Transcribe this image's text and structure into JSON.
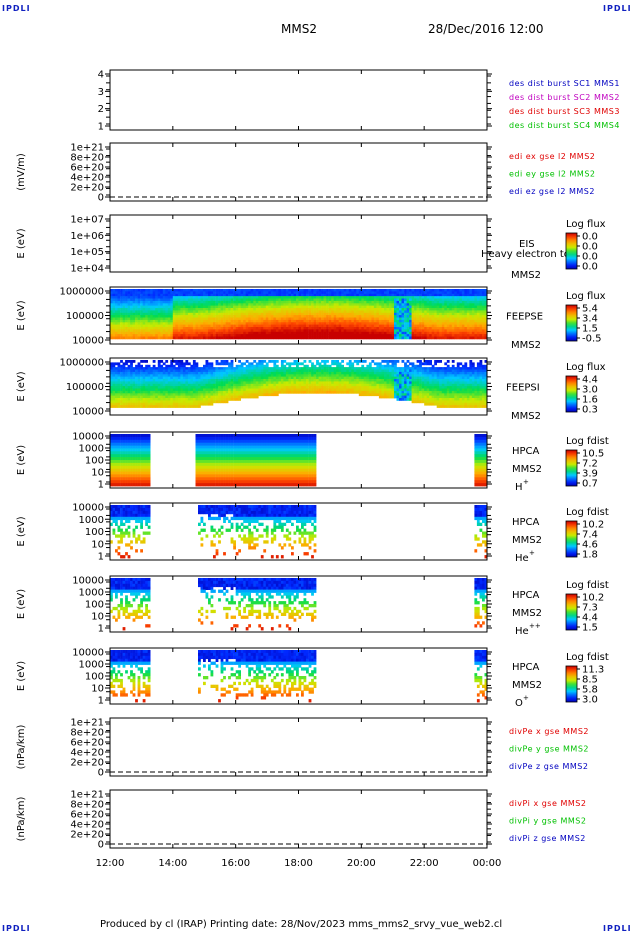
{
  "header": {
    "corner_label": "IPDLI",
    "spacecraft": "MMS2",
    "datetime": "28/Dec/2016 12:00"
  },
  "footer": {
    "text": "Produced by cl (IRAP)   Printing date: 28/Nov/2023   mms_mms2_srvy_vue_web2.cl"
  },
  "colors": {
    "red": "#e00000",
    "green": "#00c000",
    "blue": "#0000c0",
    "magenta": "#c000c0",
    "label_blue": "#1020c0"
  },
  "chart_data": {
    "type": "heatmap",
    "x_tick_labels": [
      "12:00",
      "14:00",
      "16:00",
      "18:00",
      "20:00",
      "22:00",
      "00:00"
    ],
    "x_range_hours": [
      12,
      24
    ],
    "panels": [
      {
        "id": "burst",
        "kind": "lines",
        "ylabel": "",
        "y_ticks": [
          "4",
          "3",
          "2",
          "1"
        ],
        "legend": [
          {
            "text": "des dist burst SC1 MMS1",
            "color": "#0000c0"
          },
          {
            "text": "des dist burst SC2 MMS2",
            "color": "#c000c0"
          },
          {
            "text": "des dist burst SC3 MMS3",
            "color": "#e00000"
          },
          {
            "text": "des dist burst SC4 MMS4",
            "color": "#00c000"
          }
        ]
      },
      {
        "id": "efield",
        "kind": "lines",
        "ylabel": "(mV/m)",
        "y_ticks": [
          "1e+21",
          "8e+20",
          "6e+20",
          "4e+20",
          "2e+20",
          "0"
        ],
        "zero_line": true,
        "legend": [
          {
            "text": "edi ex gse l2 MMS2",
            "color": "#e00000"
          },
          {
            "text": "edi ey gse l2 MMS2",
            "color": "#00c000"
          },
          {
            "text": "edi ez gse l2 MMS2",
            "color": "#0000c0"
          }
        ]
      },
      {
        "id": "eis",
        "kind": "spectrogram",
        "ylabel": "E (eV)",
        "y_ticks": [
          "1e+07",
          "1e+06",
          "1e+05",
          "1e+04"
        ],
        "instrument": "EIS",
        "overlay": "Heavy electron to",
        "sc": "MMS2",
        "colorbar": {
          "title": "Log flux",
          "ticks": [
            "0.0",
            "0.0",
            "0.0",
            "0.0"
          ]
        }
      },
      {
        "id": "feepse",
        "kind": "spectrogram",
        "ylabel": "E (eV)",
        "y_ticks": [
          "1000000",
          "100000",
          "10000"
        ],
        "instrument": "FEEPSE",
        "sc": "MMS2",
        "colorbar": {
          "title": "Log flux",
          "ticks": [
            "5.4",
            "3.4",
            "1.5",
            "-0.5"
          ]
        }
      },
      {
        "id": "feepsi",
        "kind": "spectrogram",
        "ylabel": "E (eV)",
        "y_ticks": [
          "1000000",
          "100000",
          "10000"
        ],
        "instrument": "FEEPSI",
        "sc": "MMS2",
        "colorbar": {
          "title": "Log flux",
          "ticks": [
            "4.4",
            "3.0",
            "1.6",
            "0.3"
          ]
        }
      },
      {
        "id": "hpca_h",
        "kind": "spectrogram",
        "ylabel": "E (eV)",
        "y_ticks": [
          "10000",
          "1000",
          "100",
          "10",
          "1"
        ],
        "instrument": "HPCA",
        "sc": "MMS2",
        "species": "H",
        "species_sup": "+",
        "colorbar": {
          "title": "Log fdist",
          "ticks": [
            "10.5",
            "7.2",
            "3.9",
            "0.7"
          ]
        }
      },
      {
        "id": "hpca_he",
        "kind": "spectrogram",
        "ylabel": "E (eV)",
        "y_ticks": [
          "10000",
          "1000",
          "100",
          "10",
          "1"
        ],
        "instrument": "HPCA",
        "sc": "MMS2",
        "species": "He",
        "species_sup": "+",
        "colorbar": {
          "title": "Log fdist",
          "ticks": [
            "10.2",
            "7.4",
            "4.6",
            "1.8"
          ]
        }
      },
      {
        "id": "hpca_he2",
        "kind": "spectrogram",
        "ylabel": "E (eV)",
        "y_ticks": [
          "10000",
          "1000",
          "100",
          "10",
          "1"
        ],
        "instrument": "HPCA",
        "sc": "MMS2",
        "species": "He",
        "species_sup": "++",
        "colorbar": {
          "title": "Log fdist",
          "ticks": [
            "10.2",
            "7.3",
            "4.4",
            "1.5"
          ]
        }
      },
      {
        "id": "hpca_o",
        "kind": "spectrogram",
        "ylabel": "E (eV)",
        "y_ticks": [
          "10000",
          "1000",
          "100",
          "10",
          "1"
        ],
        "instrument": "HPCA",
        "sc": "MMS2",
        "species": "O",
        "species_sup": "+",
        "colorbar": {
          "title": "Log fdist",
          "ticks": [
            "11.3",
            "8.5",
            "5.8",
            "3.0"
          ]
        }
      },
      {
        "id": "divpe",
        "kind": "lines",
        "ylabel": "(nPa/km)",
        "y_ticks": [
          "1e+21",
          "8e+20",
          "6e+20",
          "4e+20",
          "2e+20",
          "0"
        ],
        "zero_line": true,
        "legend": [
          {
            "text": "divPe x gse MMS2",
            "color": "#e00000"
          },
          {
            "text": "divPe y gse MMS2",
            "color": "#00c000"
          },
          {
            "text": "divPe z gse MMS2",
            "color": "#0000c0"
          }
        ]
      },
      {
        "id": "divpi",
        "kind": "lines",
        "ylabel": "(nPa/km)",
        "y_ticks": [
          "1e+21",
          "8e+20",
          "6e+20",
          "4e+20",
          "2e+20",
          "0"
        ],
        "zero_line": true,
        "legend": [
          {
            "text": "divPi x gse MMS2",
            "color": "#e00000"
          },
          {
            "text": "divPi y gse MMS2",
            "color": "#00c000"
          },
          {
            "text": "divPi z gse MMS2",
            "color": "#0000c0"
          }
        ]
      }
    ],
    "data_coverage_hours": {
      "feep": [
        [
          12.0,
          24.0
        ]
      ],
      "hpca_h": [
        [
          12.0,
          13.25
        ],
        [
          14.7,
          18.55
        ],
        [
          23.6,
          24.0
        ]
      ],
      "hpca_minor": [
        [
          12.0,
          13.25
        ],
        [
          14.8,
          18.55
        ],
        [
          23.6,
          24.0
        ]
      ]
    }
  }
}
